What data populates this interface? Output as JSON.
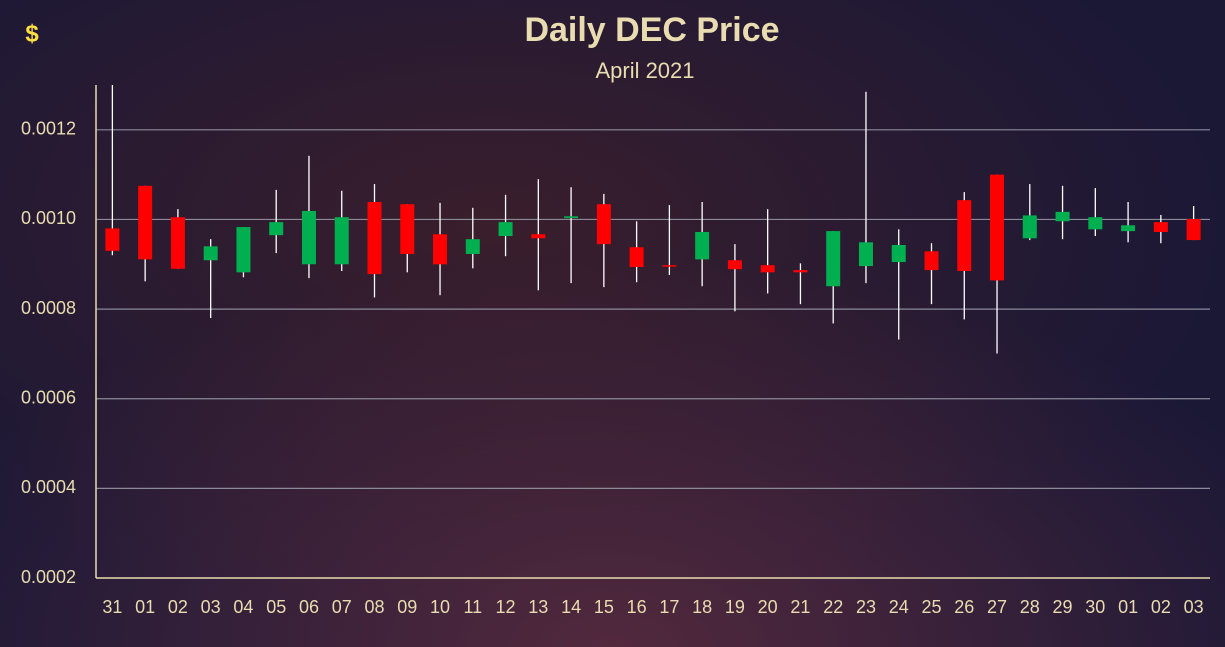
{
  "chart_data": {
    "type": "candlestick",
    "title": "Daily DEC Price",
    "subtitle": "April 2021",
    "y_label": "$",
    "categories": [
      "31",
      "01",
      "02",
      "03",
      "04",
      "05",
      "06",
      "07",
      "08",
      "09",
      "10",
      "11",
      "12",
      "13",
      "14",
      "15",
      "16",
      "17",
      "18",
      "19",
      "20",
      "21",
      "22",
      "23",
      "24",
      "25",
      "26",
      "27",
      "28",
      "29",
      "30",
      "01",
      "02",
      "03"
    ],
    "open": [
      0.00098,
      0.001075,
      0.001005,
      0.000909,
      0.000882,
      0.000965,
      0.0009,
      0.0009,
      0.001039,
      0.001034,
      0.000967,
      0.000923,
      0.000963,
      0.000967,
      0.001003,
      0.001034,
      0.000938,
      0.000898,
      0.000911,
      0.000909,
      0.000898,
      0.000887,
      0.000851,
      0.000896,
      0.000905,
      0.000929,
      0.001043,
      0.0011,
      0.000958,
      0.000996,
      0.000978,
      0.000974,
      0.000994,
      0.001001
    ],
    "high": [
      0.0013,
      0.001075,
      0.001023,
      0.000956,
      0.000983,
      0.001066,
      0.001142,
      0.001064,
      0.001079,
      0.001034,
      0.001037,
      0.001026,
      0.001055,
      0.00109,
      0.001072,
      0.001057,
      0.000996,
      0.001032,
      0.001039,
      0.000945,
      0.001023,
      0.000902,
      0.000974,
      0.001285,
      0.000978,
      0.000947,
      0.001061,
      0.0011,
      0.001079,
      0.001075,
      0.00107,
      0.001039,
      0.00101,
      0.00103
    ],
    "low": [
      0.00092,
      0.000862,
      0.00089,
      0.00078,
      0.000871,
      0.000925,
      0.000869,
      0.000885,
      0.000826,
      0.000882,
      0.000831,
      0.000891,
      0.000918,
      0.000842,
      0.000858,
      0.000849,
      0.00086,
      0.000876,
      0.000851,
      0.000795,
      0.000835,
      0.000811,
      0.000768,
      0.000858,
      0.000732,
      0.000811,
      0.000777,
      0.000701,
      0.000954,
      0.000956,
      0.000963,
      0.000949,
      0.000947,
      0.000954
    ],
    "close": [
      0.00093,
      0.000911,
      0.00089,
      0.00094,
      0.000983,
      0.000994,
      0.001019,
      0.001005,
      0.000878,
      0.000923,
      0.0009,
      0.000956,
      0.000994,
      0.000958,
      0.001007,
      0.000945,
      0.000894,
      0.000896,
      0.000972,
      0.000889,
      0.000882,
      0.000882,
      0.000974,
      0.000949,
      0.000943,
      0.000887,
      0.000885,
      0.000864,
      0.001009,
      0.001017,
      0.001005,
      0.000987,
      0.000972,
      0.000954
    ],
    "up_color": "#00b050",
    "down_color": "#ff0000",
    "ylim": [
      0.0002,
      0.0013
    ],
    "yticks": [
      0.0002,
      0.0004,
      0.0006,
      0.0008,
      {
        "value": 0.001,
        "label": "0.0010"
      },
      0.0012
    ],
    "grid": true
  }
}
